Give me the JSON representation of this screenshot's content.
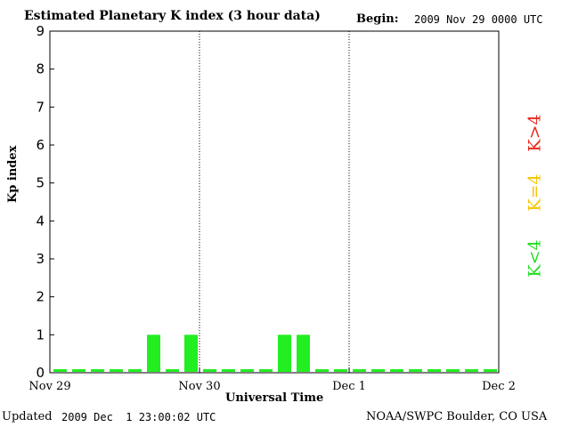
{
  "header": {
    "title": "Estimated Planetary K index (3 hour data)",
    "begin_label": "Begin:",
    "begin_value": "2009 Nov 29 0000 UTC"
  },
  "footer": {
    "updated_label": "Updated",
    "updated_value": "2009 Dec  1 23:00:02 UTC",
    "credit": "NOAA/SWPC Boulder, CO USA"
  },
  "legend": {
    "high": "K>4",
    "equal": "K=4",
    "low": "K<4"
  },
  "colors": {
    "low": "#22ee22",
    "equal": "#f5c400",
    "high": "#e8281c"
  },
  "chart_data": {
    "type": "bar",
    "title": "Estimated Planetary K index (3 hour data)",
    "xlabel": "Universal Time",
    "ylabel": "Kp index",
    "ylim": [
      0,
      9
    ],
    "yticks": [
      0,
      1,
      2,
      3,
      4,
      5,
      6,
      7,
      8,
      9
    ],
    "x_tick_labels": [
      "Nov 29",
      "Nov 30",
      "Dec 1",
      "Dec 2"
    ],
    "interval_hours": 3,
    "day_separators": true,
    "values": [
      0,
      0,
      0,
      0,
      0,
      1,
      0,
      1,
      0,
      0,
      0,
      0,
      1,
      1,
      0,
      0,
      0,
      0,
      0,
      0,
      0,
      0,
      0,
      0
    ]
  }
}
